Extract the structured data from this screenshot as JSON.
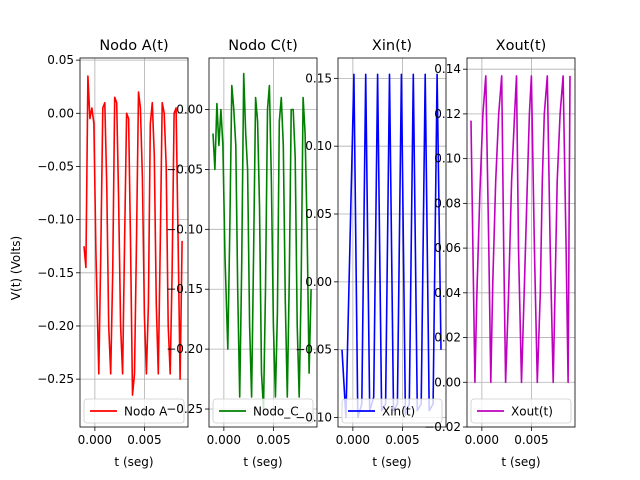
{
  "figure": {
    "ylabel": "V(t) (Volts)",
    "xlabel": "t (seg)"
  },
  "chart_data": [
    {
      "type": "line",
      "title": "Nodo A(t)",
      "xlabel": "t (seg)",
      "ylabel": "V(t) (Volts)",
      "xlim": [
        -0.0015,
        0.0094
      ],
      "ylim": [
        -0.295,
        0.052
      ],
      "xticks": [
        0.0,
        0.005
      ],
      "xtick_labels": [
        "0.000",
        "0.005"
      ],
      "yticks": [
        0.05,
        0.0,
        -0.05,
        -0.1,
        -0.15,
        -0.2,
        -0.25
      ],
      "ytick_labels": [
        "0.05",
        "0.00",
        "−0.05",
        "−0.10",
        "−0.15",
        "−0.20",
        "−0.25"
      ],
      "grid": true,
      "legend": "lower left",
      "series": [
        {
          "name": "Nodo A",
          "color": "#ff0000",
          "x": [
            -0.0011,
            -0.0009,
            -0.0007,
            -0.0005,
            -0.0003,
            -0.0001,
            0.0001,
            0.0004,
            0.0006,
            0.0008,
            0.001,
            0.0012,
            0.0014,
            0.0016,
            0.0018,
            0.002,
            0.0022,
            0.0024,
            0.0026,
            0.0028,
            0.003,
            0.0032,
            0.0034,
            0.0036,
            0.0038,
            0.004,
            0.0042,
            0.0044,
            0.0046,
            0.0048,
            0.005,
            0.0052,
            0.0054,
            0.0056,
            0.0058,
            0.006,
            0.0062,
            0.0064,
            0.0066,
            0.0068,
            0.007,
            0.0072,
            0.0074,
            0.0076,
            0.0078,
            0.008,
            0.0082,
            0.0084,
            0.0086,
            0.0088
          ],
          "y": [
            -0.125,
            -0.145,
            0.035,
            -0.005,
            0.005,
            -0.01,
            -0.13,
            -0.245,
            -0.13,
            0.005,
            0.01,
            -0.07,
            -0.2,
            -0.245,
            -0.15,
            0.015,
            0.01,
            -0.08,
            -0.2,
            -0.245,
            -0.12,
            0.0,
            -0.005,
            -0.12,
            -0.265,
            -0.245,
            -0.12,
            0.02,
            0.005,
            -0.06,
            -0.19,
            -0.245,
            -0.18,
            -0.01,
            0.01,
            -0.04,
            -0.18,
            -0.245,
            -0.12,
            0.01,
            0.0,
            -0.05,
            -0.2,
            -0.245,
            -0.15,
            0.0,
            0.005,
            -0.12,
            -0.25,
            -0.12
          ]
        }
      ]
    },
    {
      "type": "line",
      "title": "Nodo C(t)",
      "xlabel": "t (seg)",
      "xlim": [
        -0.0015,
        0.0094
      ],
      "ylim": [
        -0.265,
        0.043
      ],
      "xticks": [
        0.0,
        0.005
      ],
      "xtick_labels": [
        "0.000",
        "0.005"
      ],
      "yticks": [
        0.0,
        -0.05,
        -0.1,
        -0.15,
        -0.2,
        -0.25
      ],
      "ytick_labels": [
        "0.00",
        "−0.05",
        "−0.10",
        "−0.15",
        "−0.20",
        "−0.25"
      ],
      "grid": true,
      "legend": "lower left",
      "series": [
        {
          "name": "Nodo_C",
          "color": "#008000",
          "x": [
            -0.0011,
            -0.0009,
            -0.0007,
            -0.0005,
            -0.0003,
            -0.0001,
            0.0001,
            0.0004,
            0.0006,
            0.0008,
            0.001,
            0.0012,
            0.0014,
            0.0016,
            0.0018,
            0.002,
            0.0022,
            0.0024,
            0.0026,
            0.0028,
            0.003,
            0.0032,
            0.0034,
            0.0036,
            0.0038,
            0.004,
            0.0042,
            0.0044,
            0.0046,
            0.0048,
            0.005,
            0.0052,
            0.0054,
            0.0056,
            0.0058,
            0.006,
            0.0062,
            0.0064,
            0.0066,
            0.0068,
            0.007,
            0.0072,
            0.0074,
            0.0076,
            0.0078,
            0.008,
            0.0082,
            0.0084,
            0.0086,
            0.0088
          ],
          "y": [
            -0.02,
            -0.05,
            0.005,
            -0.03,
            0.0,
            -0.03,
            -0.12,
            -0.2,
            -0.1,
            0.02,
            0.0,
            -0.03,
            -0.15,
            -0.24,
            -0.13,
            0.03,
            -0.02,
            -0.05,
            -0.18,
            -0.24,
            -0.12,
            0.01,
            -0.01,
            -0.08,
            -0.22,
            -0.25,
            -0.15,
            0.0,
            0.02,
            -0.06,
            -0.18,
            -0.24,
            -0.17,
            -0.01,
            0.01,
            -0.03,
            -0.16,
            -0.24,
            -0.14,
            0.0,
            0.0,
            -0.04,
            -0.18,
            -0.24,
            -0.15,
            0.01,
            -0.02,
            -0.1,
            -0.22,
            -0.15
          ]
        }
      ]
    },
    {
      "type": "line",
      "title": "Xin(t)",
      "xlabel": "t (seg)",
      "xlim": [
        -0.0015,
        0.0094
      ],
      "ylim": [
        -0.107,
        0.165
      ],
      "xticks": [
        0.0,
        0.005
      ],
      "xtick_labels": [
        "0.000",
        "0.005"
      ],
      "yticks": [
        0.15,
        0.1,
        0.05,
        0.0,
        -0.05,
        -0.1
      ],
      "ytick_labels": [
        "0.15",
        "0.10",
        "0.05",
        "0.00",
        "−0.05",
        "−0.10"
      ],
      "grid": true,
      "legend": "lower left",
      "series": [
        {
          "name": "Xin(t)",
          "color": "#0000ff",
          "x": [
            -0.0011,
            -0.0007,
            0.0001,
            0.0005,
            0.0009,
            0.0013,
            0.0017,
            0.0021,
            0.0025,
            0.0029,
            0.0033,
            0.0037,
            0.0041,
            0.0045,
            0.0049,
            0.0053,
            0.0057,
            0.0061,
            0.0065,
            0.0069,
            0.0073,
            0.0077,
            0.0081,
            0.0085,
            0.0089
          ],
          "y": [
            -0.05,
            -0.1,
            0.153,
            -0.1,
            -0.09,
            0.153,
            -0.095,
            -0.085,
            0.153,
            -0.095,
            -0.09,
            0.153,
            -0.095,
            -0.09,
            0.153,
            -0.098,
            -0.09,
            0.153,
            -0.095,
            -0.09,
            0.153,
            -0.095,
            -0.09,
            0.153,
            -0.05
          ]
        }
      ]
    },
    {
      "type": "line",
      "title": "Xout(t)",
      "xlabel": "t (seg)",
      "xlim": [
        -0.0015,
        0.0094
      ],
      "ylim": [
        -0.02,
        0.145
      ],
      "xticks": [
        0.0,
        0.005
      ],
      "xtick_labels": [
        "0.000",
        "0.005"
      ],
      "yticks": [
        0.14,
        0.12,
        0.1,
        0.08,
        0.06,
        0.04,
        0.02,
        0.0,
        -0.02
      ],
      "ytick_labels": [
        "0.14",
        "0.12",
        "0.10",
        "0.08",
        "0.06",
        "0.04",
        "0.02",
        "0.00",
        "−0.02"
      ],
      "grid": true,
      "legend": "lower left",
      "series": [
        {
          "name": "Xout(t)",
          "color": "#bf00bf",
          "x": [
            -0.0011,
            -0.0009,
            -0.0007,
            -0.0005,
            -0.0002,
            0.0001,
            0.0004,
            0.0007,
            0.0009,
            0.0011,
            0.0014,
            0.0017,
            0.002,
            0.0022,
            0.0024,
            0.0027,
            0.003,
            0.0033,
            0.0035,
            0.0037,
            0.004,
            0.0043,
            0.0046,
            0.0048,
            0.005,
            0.0053,
            0.0056,
            0.0059,
            0.0061,
            0.0063,
            0.0066,
            0.0069,
            0.0072,
            0.0074,
            0.0076,
            0.0079,
            0.0082,
            0.0085,
            0.0087,
            0.0089
          ],
          "y": [
            0.117,
            0.06,
            0.0,
            0.04,
            0.085,
            0.12,
            0.137,
            0.06,
            0.0,
            0.045,
            0.09,
            0.12,
            0.137,
            0.06,
            0.0,
            0.04,
            0.09,
            0.12,
            0.137,
            0.06,
            0.0,
            0.045,
            0.09,
            0.12,
            0.137,
            0.06,
            0.0,
            0.04,
            0.09,
            0.12,
            0.137,
            0.06,
            0.0,
            0.045,
            0.09,
            0.12,
            0.137,
            0.06,
            0.0,
            0.137
          ]
        }
      ]
    }
  ]
}
